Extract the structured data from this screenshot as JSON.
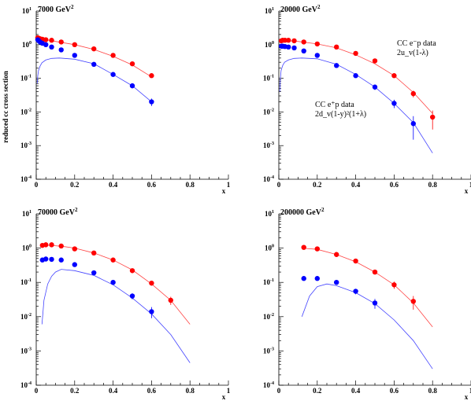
{
  "figure": {
    "ylabel": "reduced cc cross section",
    "colors": {
      "ep_minus": "#ff0000",
      "ep_plus": "#0000ff",
      "fit_ep_minus": "#ff4444",
      "fit_ep_plus": "#4444ff"
    }
  },
  "chart_data": [
    {
      "type": "scatter",
      "title": "7000 GeV²",
      "xlabel": "x",
      "xlim": [
        0,
        1
      ],
      "ylim": [
        0.0001,
        10
      ],
      "yscale": "log",
      "x_ticks": [
        "0",
        "0.2",
        "0.4",
        "0.6",
        "0.8",
        "1"
      ],
      "y_ticks": [
        {
          "base": "10",
          "exp": "1"
        },
        {
          "base": "10",
          "exp": "0"
        },
        {
          "base": "10",
          "exp": "-1"
        },
        {
          "base": "10",
          "exp": "-2"
        },
        {
          "base": "10",
          "exp": "-3"
        },
        {
          "base": "10",
          "exp": "-4"
        }
      ],
      "series": [
        {
          "key": "ep_minus",
          "x": [
            0.008,
            0.013,
            0.02,
            0.032,
            0.05,
            0.08,
            0.13,
            0.2,
            0.3,
            0.4,
            0.5,
            0.6
          ],
          "y": [
            1.6,
            1.55,
            1.5,
            1.45,
            1.4,
            1.35,
            1.2,
            1.0,
            0.75,
            0.48,
            0.27,
            0.12
          ],
          "err": [
            0.1,
            0.1,
            0.1,
            0.1,
            0.1,
            0.1,
            0.08,
            0.07,
            0.06,
            0.04,
            0.03,
            0.015
          ]
        },
        {
          "key": "ep_plus",
          "x": [
            0.008,
            0.013,
            0.02,
            0.032,
            0.05,
            0.08,
            0.13,
            0.2,
            0.3,
            0.4,
            0.5,
            0.6
          ],
          "y": [
            1.4,
            1.3,
            1.2,
            1.1,
            1.0,
            0.85,
            0.7,
            0.48,
            0.26,
            0.13,
            0.06,
            0.02
          ],
          "err": [
            0.1,
            0.1,
            0.1,
            0.08,
            0.08,
            0.07,
            0.06,
            0.04,
            0.03,
            0.015,
            0.01,
            0.005
          ]
        }
      ],
      "fits": [
        {
          "key": "ep_minus",
          "x": [
            0.005,
            0.02,
            0.05,
            0.1,
            0.2,
            0.3,
            0.4,
            0.5,
            0.6
          ],
          "y": [
            1.9,
            1.6,
            1.4,
            1.25,
            1.0,
            0.72,
            0.45,
            0.25,
            0.11
          ]
        },
        {
          "key": "ep_plus",
          "x": [
            0.005,
            0.008,
            0.012,
            0.02,
            0.03,
            0.05,
            0.08,
            0.12,
            0.2,
            0.3,
            0.4,
            0.5,
            0.6
          ],
          "y": [
            0.07,
            0.12,
            0.17,
            0.23,
            0.29,
            0.35,
            0.39,
            0.4,
            0.37,
            0.27,
            0.13,
            0.06,
            0.02
          ]
        }
      ],
      "annotations": []
    },
    {
      "type": "scatter",
      "title": "20000 GeV²",
      "xlabel": "x",
      "xlim": [
        0,
        1
      ],
      "ylim": [
        0.0001,
        10
      ],
      "yscale": "log",
      "x_ticks": [
        "0",
        "0.2",
        "0.4",
        "0.6",
        "0.8",
        "1"
      ],
      "y_ticks": [
        {
          "base": "10",
          "exp": "1"
        },
        {
          "base": "10",
          "exp": "0"
        },
        {
          "base": "10",
          "exp": "-1"
        },
        {
          "base": "10",
          "exp": "-2"
        },
        {
          "base": "10",
          "exp": "-3"
        },
        {
          "base": "10",
          "exp": "-4"
        }
      ],
      "series": [
        {
          "key": "ep_minus",
          "x": [
            0.013,
            0.02,
            0.032,
            0.05,
            0.08,
            0.13,
            0.2,
            0.3,
            0.4,
            0.5,
            0.6,
            0.7,
            0.8
          ],
          "y": [
            1.3,
            1.35,
            1.35,
            1.35,
            1.3,
            1.2,
            1.05,
            0.85,
            0.55,
            0.33,
            0.12,
            0.035,
            0.007
          ],
          "err": [
            0.1,
            0.1,
            0.1,
            0.1,
            0.1,
            0.08,
            0.07,
            0.06,
            0.05,
            0.03,
            0.015,
            0.008,
            0.004
          ]
        },
        {
          "key": "ep_plus",
          "x": [
            0.013,
            0.02,
            0.032,
            0.05,
            0.08,
            0.13,
            0.2,
            0.3,
            0.4,
            0.5,
            0.6,
            0.7
          ],
          "y": [
            0.9,
            0.9,
            0.88,
            0.85,
            0.8,
            0.65,
            0.48,
            0.24,
            0.12,
            0.055,
            0.018,
            0.0045
          ],
          "err": [
            0.08,
            0.08,
            0.07,
            0.07,
            0.06,
            0.05,
            0.04,
            0.03,
            0.015,
            0.01,
            0.005,
            0.003
          ]
        }
      ],
      "fits": [
        {
          "key": "ep_minus",
          "x": [
            0.01,
            0.05,
            0.1,
            0.2,
            0.3,
            0.4,
            0.5,
            0.6,
            0.7,
            0.8
          ],
          "y": [
            1.25,
            1.3,
            1.25,
            1.05,
            0.8,
            0.5,
            0.27,
            0.12,
            0.038,
            0.009
          ]
        },
        {
          "key": "ep_plus",
          "x": [
            0.005,
            0.008,
            0.012,
            0.02,
            0.03,
            0.05,
            0.08,
            0.12,
            0.2,
            0.3,
            0.4,
            0.5,
            0.6,
            0.7,
            0.8
          ],
          "y": [
            0.04,
            0.1,
            0.17,
            0.24,
            0.3,
            0.35,
            0.39,
            0.4,
            0.38,
            0.26,
            0.13,
            0.055,
            0.018,
            0.0048,
            0.0006
          ]
        }
      ],
      "annotations": [
        {
          "lines": [
            "CC e⁻p data",
            "2u_v(1-λ)"
          ]
        },
        {
          "lines": [
            "CC e⁺p data",
            "2d_v(1-y)²(1+λ)"
          ]
        }
      ]
    },
    {
      "type": "scatter",
      "title": "70000 GeV²",
      "xlabel": "x",
      "xlim": [
        0,
        1
      ],
      "ylim": [
        0.0001,
        10
      ],
      "yscale": "log",
      "x_ticks": [
        "0",
        "0.2",
        "0.4",
        "0.6",
        "0.8",
        "1"
      ],
      "y_ticks": [
        {
          "base": "10",
          "exp": "1"
        },
        {
          "base": "10",
          "exp": "0"
        },
        {
          "base": "10",
          "exp": "-1"
        },
        {
          "base": "10",
          "exp": "-2"
        },
        {
          "base": "10",
          "exp": "-3"
        },
        {
          "base": "10",
          "exp": "-4"
        }
      ],
      "series": [
        {
          "key": "ep_minus",
          "x": [
            0.032,
            0.05,
            0.08,
            0.13,
            0.2,
            0.3,
            0.4,
            0.5,
            0.6,
            0.7
          ],
          "y": [
            1.2,
            1.25,
            1.25,
            1.15,
            0.95,
            0.72,
            0.45,
            0.22,
            0.095,
            0.03
          ],
          "err": [
            0.1,
            0.1,
            0.1,
            0.09,
            0.08,
            0.06,
            0.04,
            0.03,
            0.015,
            0.008
          ]
        },
        {
          "key": "ep_plus",
          "x": [
            0.032,
            0.05,
            0.08,
            0.13,
            0.2,
            0.3,
            0.4,
            0.5,
            0.6
          ],
          "y": [
            0.45,
            0.48,
            0.47,
            0.45,
            0.33,
            0.19,
            0.1,
            0.04,
            0.014
          ],
          "err": [
            0.05,
            0.05,
            0.05,
            0.04,
            0.03,
            0.02,
            0.012,
            0.008,
            0.005
          ]
        }
      ],
      "fits": [
        {
          "key": "ep_minus",
          "x": [
            0.03,
            0.08,
            0.15,
            0.2,
            0.3,
            0.4,
            0.5,
            0.6,
            0.7,
            0.8
          ],
          "y": [
            1.2,
            1.2,
            1.1,
            1.0,
            0.72,
            0.45,
            0.23,
            0.09,
            0.03,
            0.006
          ]
        },
        {
          "key": "ep_plus",
          "x": [
            0.03,
            0.04,
            0.06,
            0.08,
            0.1,
            0.13,
            0.2,
            0.3,
            0.4,
            0.5,
            0.6,
            0.7,
            0.8
          ],
          "y": [
            0.006,
            0.03,
            0.09,
            0.15,
            0.2,
            0.24,
            0.22,
            0.16,
            0.085,
            0.035,
            0.012,
            0.003,
            0.00045
          ]
        }
      ],
      "annotations": []
    },
    {
      "type": "scatter",
      "title": "200000 GeV²",
      "xlabel": "x",
      "xlim": [
        0,
        1
      ],
      "ylim": [
        0.0001,
        10
      ],
      "yscale": "log",
      "x_ticks": [
        "0",
        "0.2",
        "0.4",
        "0.6",
        "0.8",
        "1"
      ],
      "y_ticks": [
        {
          "base": "10",
          "exp": "1"
        },
        {
          "base": "10",
          "exp": "0"
        },
        {
          "base": "10",
          "exp": "-1"
        },
        {
          "base": "10",
          "exp": "-2"
        },
        {
          "base": "10",
          "exp": "-3"
        },
        {
          "base": "10",
          "exp": "-4"
        }
      ],
      "series": [
        {
          "key": "ep_minus",
          "x": [
            0.13,
            0.2,
            0.3,
            0.4,
            0.5,
            0.6,
            0.7
          ],
          "y": [
            1.05,
            0.95,
            0.65,
            0.42,
            0.2,
            0.085,
            0.028
          ],
          "err": [
            0.1,
            0.09,
            0.06,
            0.04,
            0.03,
            0.02,
            0.012
          ]
        },
        {
          "key": "ep_plus",
          "x": [
            0.13,
            0.2,
            0.3,
            0.4,
            0.5
          ],
          "y": [
            0.13,
            0.13,
            0.1,
            0.055,
            0.025
          ],
          "err": [
            0.015,
            0.015,
            0.012,
            0.01,
            0.008
          ]
        }
      ],
      "fits": [
        {
          "key": "ep_minus",
          "x": [
            0.12,
            0.2,
            0.3,
            0.4,
            0.5,
            0.6,
            0.7,
            0.8
          ],
          "y": [
            1.0,
            0.92,
            0.65,
            0.4,
            0.2,
            0.085,
            0.025,
            0.005
          ]
        },
        {
          "key": "ep_plus",
          "x": [
            0.12,
            0.16,
            0.2,
            0.25,
            0.3,
            0.4,
            0.5,
            0.6,
            0.7,
            0.8
          ],
          "y": [
            0.01,
            0.04,
            0.075,
            0.09,
            0.08,
            0.05,
            0.024,
            0.008,
            0.002,
            0.0003
          ]
        }
      ],
      "annotations": []
    }
  ]
}
